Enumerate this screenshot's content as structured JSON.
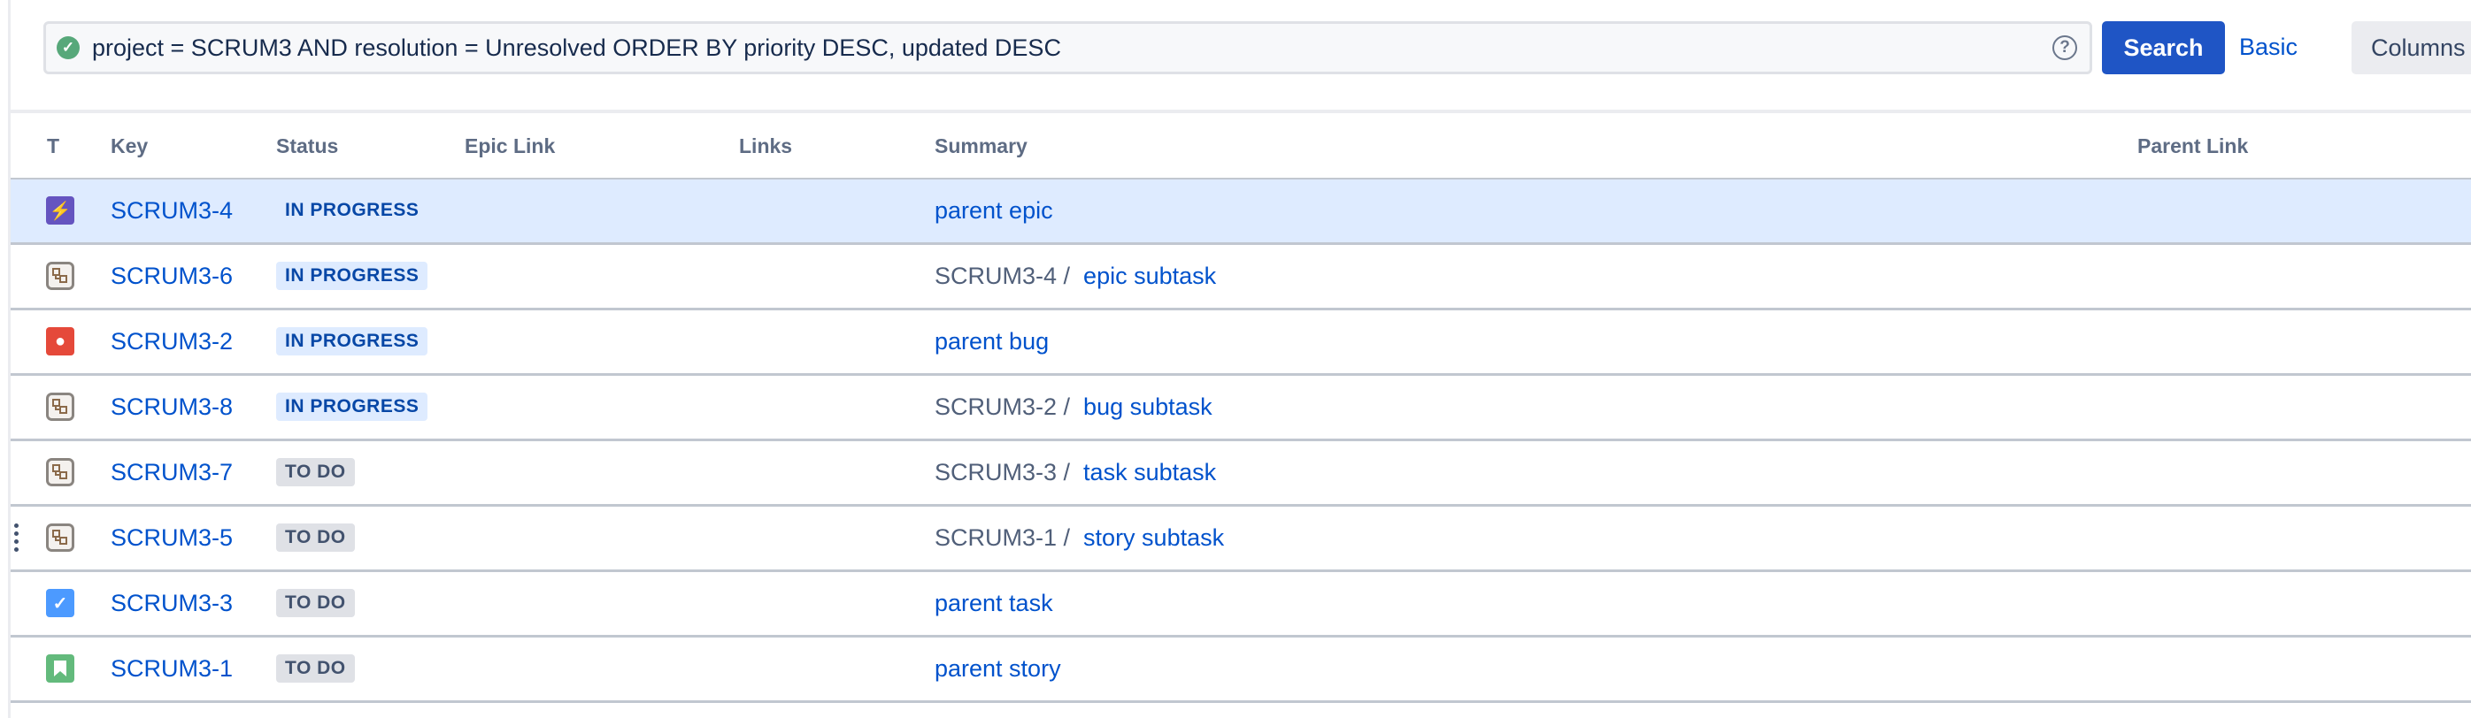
{
  "search": {
    "query": "project = SCRUM3 AND resolution = Unresolved ORDER BY priority DESC, updated DESC",
    "search_label": "Search",
    "basic_label": "Basic",
    "columns_label": "Columns"
  },
  "columns": [
    "T",
    "Key",
    "Status",
    "Epic Link",
    "Links",
    "Summary",
    "Parent Link"
  ],
  "colors": {
    "accent": "#1f55c5",
    "selected_row": "#deebff",
    "epic": "#6554c0",
    "bug": "#e5493a",
    "task": "#4c9aff",
    "story": "#63ba7c",
    "subtask": "#e8e3df"
  },
  "rows": [
    {
      "type": "epic",
      "key": "SCRUM3-4",
      "status": "IN PROGRESS",
      "status_color": "blue",
      "parent": "",
      "summary": "parent epic",
      "selected": true
    },
    {
      "type": "subtask",
      "key": "SCRUM3-6",
      "status": "IN PROGRESS",
      "status_color": "blue",
      "parent": "SCRUM3-4 /",
      "summary": "epic subtask"
    },
    {
      "type": "bug",
      "key": "SCRUM3-2",
      "status": "IN PROGRESS",
      "status_color": "blue",
      "parent": "",
      "summary": "parent bug"
    },
    {
      "type": "subtask",
      "key": "SCRUM3-8",
      "status": "IN PROGRESS",
      "status_color": "blue",
      "parent": "SCRUM3-2 /",
      "summary": "bug subtask"
    },
    {
      "type": "subtask",
      "key": "SCRUM3-7",
      "status": "TO DO",
      "status_color": "gray",
      "parent": "SCRUM3-3 /",
      "summary": "task subtask"
    },
    {
      "type": "subtask",
      "key": "SCRUM3-5",
      "status": "TO DO",
      "status_color": "gray",
      "parent": "SCRUM3-1 /",
      "summary": "story subtask",
      "drag_handle": true
    },
    {
      "type": "task",
      "key": "SCRUM3-3",
      "status": "TO DO",
      "status_color": "gray",
      "parent": "",
      "summary": "parent task"
    },
    {
      "type": "story",
      "key": "SCRUM3-1",
      "status": "TO DO",
      "status_color": "gray",
      "parent": "",
      "summary": "parent story"
    }
  ]
}
